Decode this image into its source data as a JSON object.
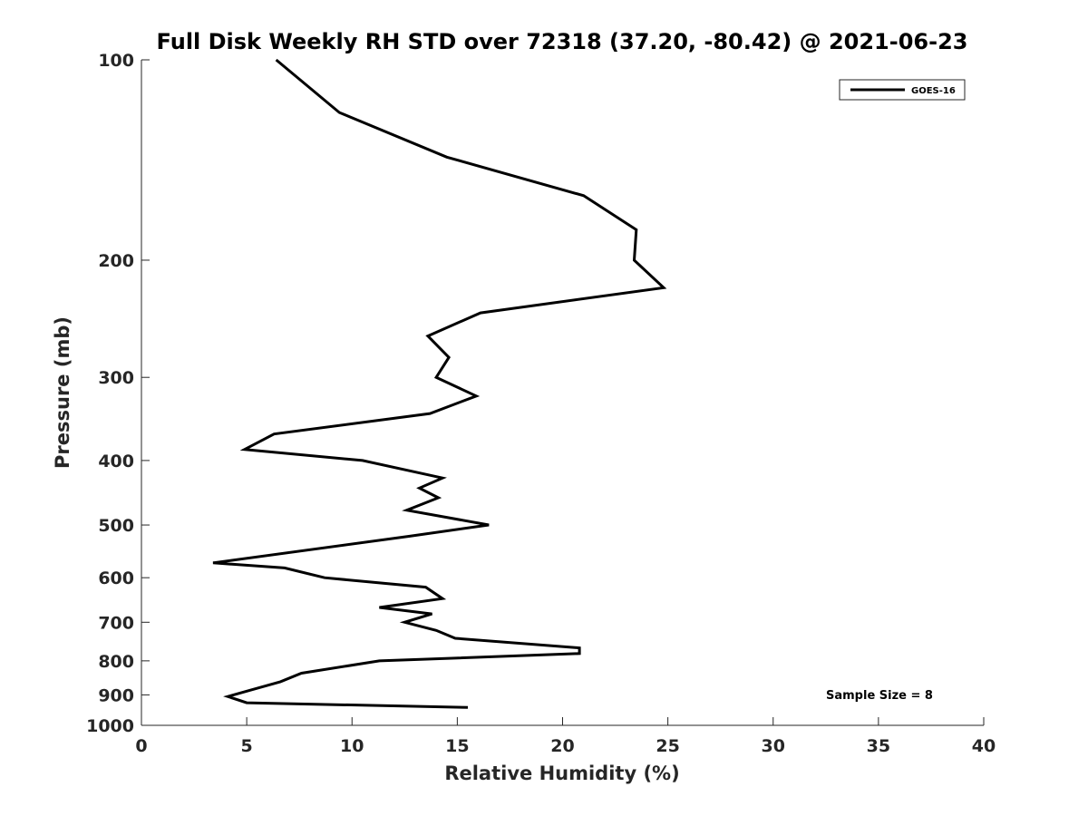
{
  "chart_data": {
    "type": "line",
    "title": "Full Disk Weekly RH STD over 72318 (37.20, -80.42) @ 2021-06-23",
    "xlabel": "Relative Humidity (%)",
    "ylabel": "Pressure (mb)",
    "xlim": [
      0,
      40
    ],
    "ylim": [
      100,
      1000
    ],
    "y_scale": "log",
    "y_reversed": true,
    "grid": false,
    "legend_position": "top-right",
    "x_ticks": [
      "0",
      "5",
      "10",
      "15",
      "20",
      "25",
      "30",
      "35",
      "40"
    ],
    "y_ticks": [
      {
        "label": "100",
        "value": 100
      },
      {
        "label": "200",
        "value": 200
      },
      {
        "label": "300",
        "value": 300
      },
      {
        "label": "400",
        "value": 400
      },
      {
        "label": "500",
        "value": 500
      },
      {
        "label": "600",
        "value": 600
      },
      {
        "label": "700",
        "value": 700
      },
      {
        "label": "800",
        "value": 800
      },
      {
        "label": "900",
        "value": 900
      },
      {
        "label": "1000",
        "value": 1000
      }
    ],
    "series": [
      {
        "name": "GOES-16",
        "color": "#000000",
        "points": [
          {
            "x": 6.4,
            "y": 100
          },
          {
            "x": 9.4,
            "y": 120
          },
          {
            "x": 14.5,
            "y": 140
          },
          {
            "x": 21.0,
            "y": 160
          },
          {
            "x": 23.5,
            "y": 180
          },
          {
            "x": 23.4,
            "y": 200
          },
          {
            "x": 24.8,
            "y": 220
          },
          {
            "x": 16.1,
            "y": 240
          },
          {
            "x": 13.6,
            "y": 260
          },
          {
            "x": 14.6,
            "y": 280
          },
          {
            "x": 14.0,
            "y": 300
          },
          {
            "x": 15.9,
            "y": 320
          },
          {
            "x": 13.7,
            "y": 340
          },
          {
            "x": 6.3,
            "y": 365
          },
          {
            "x": 4.9,
            "y": 385
          },
          {
            "x": 10.5,
            "y": 400
          },
          {
            "x": 14.3,
            "y": 425
          },
          {
            "x": 13.2,
            "y": 440
          },
          {
            "x": 14.1,
            "y": 455
          },
          {
            "x": 12.6,
            "y": 475
          },
          {
            "x": 16.5,
            "y": 500
          },
          {
            "x": 12.7,
            "y": 520
          },
          {
            "x": 3.4,
            "y": 570
          },
          {
            "x": 6.8,
            "y": 580
          },
          {
            "x": 8.7,
            "y": 600
          },
          {
            "x": 13.5,
            "y": 620
          },
          {
            "x": 14.3,
            "y": 645
          },
          {
            "x": 11.3,
            "y": 665
          },
          {
            "x": 13.8,
            "y": 680
          },
          {
            "x": 12.5,
            "y": 700
          },
          {
            "x": 14.0,
            "y": 720
          },
          {
            "x": 14.9,
            "y": 740
          },
          {
            "x": 20.8,
            "y": 765
          },
          {
            "x": 20.8,
            "y": 780
          },
          {
            "x": 11.3,
            "y": 800
          },
          {
            "x": 7.6,
            "y": 835
          },
          {
            "x": 6.6,
            "y": 860
          },
          {
            "x": 4.1,
            "y": 905
          },
          {
            "x": 5.0,
            "y": 925
          },
          {
            "x": 15.5,
            "y": 940
          }
        ]
      }
    ],
    "annotations": [
      "Sample Size = 8"
    ]
  }
}
